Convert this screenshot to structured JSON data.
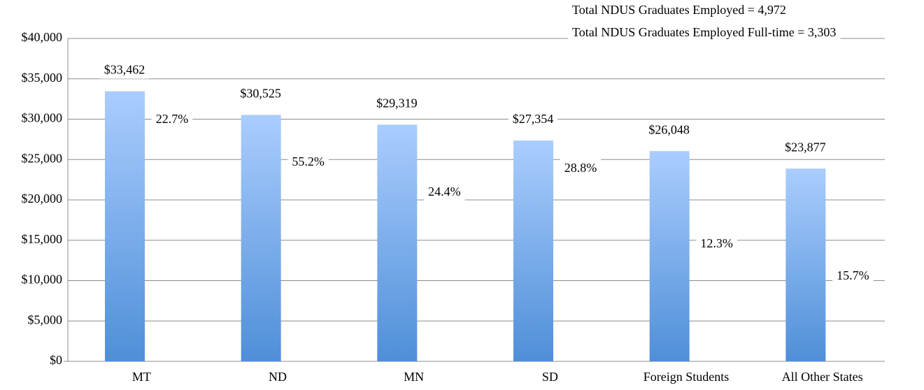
{
  "chart_data": {
    "type": "bar",
    "notes": [
      "Total NDUS Graduates Employed = 4,972",
      "Total NDUS Graduates Employed Full-time = 3,303"
    ],
    "categories": [
      "MT",
      "ND",
      "MN",
      "SD",
      "Foreign Students",
      "All Other States"
    ],
    "values": [
      33462,
      30525,
      29319,
      27354,
      26048,
      23877
    ],
    "value_labels": [
      "$33,462",
      "$30,525",
      "$29,319",
      "$27,354",
      "$26,048",
      "$23,877"
    ],
    "annotations": [
      "22.7%",
      "55.2%",
      "24.4%",
      "28.8%",
      "12.3%",
      "15.7%"
    ],
    "color": [
      "#aacdfe",
      "#4f8fd8"
    ],
    "ylim": [
      0,
      40000
    ],
    "yticks": [
      {
        "value": 0,
        "label": "$0"
      },
      {
        "value": 5000,
        "label": "$5,000"
      },
      {
        "value": 10000,
        "label": "$10,000"
      },
      {
        "value": 15000,
        "label": "$15,000"
      },
      {
        "value": 20000,
        "label": "$20,000"
      },
      {
        "value": 25000,
        "label": "$25,000"
      },
      {
        "value": 30000,
        "label": "$30,000"
      },
      {
        "value": 35000,
        "label": "$35,000"
      },
      {
        "value": 40000,
        "label": "$40,000"
      }
    ],
    "grid": true
  }
}
